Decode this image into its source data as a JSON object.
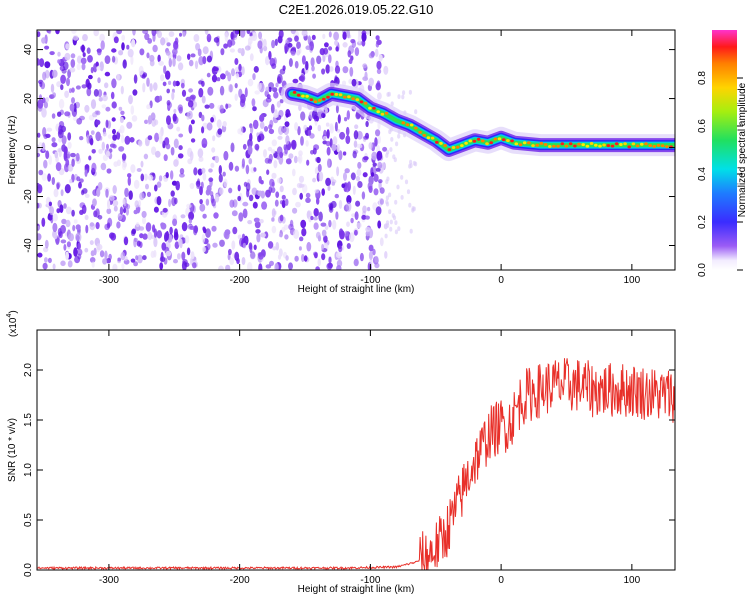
{
  "title": "C2E1.2026.019.05.22.G10",
  "colors": {
    "signal": "#e8302a",
    "speckle": "#6a1ee6",
    "frame": "#000000"
  },
  "chart_data": [
    {
      "type": "heatmap",
      "xlabel": "Height of straight line (km)",
      "ylabel": "Frequency (Hz)",
      "xlim": [
        -355,
        133
      ],
      "ylim": [
        -50,
        48
      ],
      "xticks": [
        -300,
        -200,
        -100,
        0,
        100
      ],
      "yticks": [
        -40,
        -20,
        0,
        20,
        40
      ],
      "colorbar": {
        "label": "Normalized spectral amplitude",
        "range": [
          0,
          1
        ],
        "ticks": [
          "0.0",
          "0.2",
          "0.4",
          "0.6",
          "0.8"
        ],
        "tick_values": [
          0.0,
          0.2,
          0.4,
          0.6,
          0.8
        ]
      },
      "noise_region_x": [
        -355,
        -88
      ],
      "signal_track": {
        "x": [
          -160,
          -150,
          -140,
          -130,
          -120,
          -110,
          -100,
          -90,
          -80,
          -70,
          -60,
          -50,
          -40,
          -30,
          -20,
          -10,
          0,
          10,
          30,
          50,
          70,
          90,
          110,
          133
        ],
        "y": [
          22,
          21,
          19,
          22,
          21,
          20,
          16,
          14,
          11,
          9,
          6,
          3,
          -1,
          1,
          3,
          2,
          4,
          2,
          1,
          1,
          1,
          1,
          1,
          1
        ]
      }
    },
    {
      "type": "line",
      "xlabel": "Height of straight line (km)",
      "ylabel": "SNR (10 * v/v)",
      "multiplier": "(x10",
      "multiplier_exp": "4",
      "xlim": [
        -355,
        133
      ],
      "ylim": [
        0,
        2.4
      ],
      "xticks": [
        -300,
        -200,
        -100,
        0,
        100
      ],
      "yticks": [
        "0.0",
        "0.5",
        "1.0",
        "1.5",
        "2.0"
      ],
      "ytick_values": [
        0.0,
        0.5,
        1.0,
        1.5,
        2.0
      ],
      "series": [
        {
          "x": [
            -355,
            -300,
            -200,
            -120,
            -80,
            -65,
            -55,
            -45,
            -38,
            -32,
            -25,
            -20,
            -15,
            -10,
            -5,
            0,
            5,
            10,
            15,
            20,
            30,
            40,
            50,
            60,
            70,
            80,
            100,
            120,
            133
          ],
          "y": [
            0.02,
            0.02,
            0.02,
            0.02,
            0.03,
            0.08,
            0.15,
            0.3,
            0.5,
            0.7,
            0.95,
            1.1,
            1.2,
            1.35,
            1.4,
            1.45,
            1.45,
            1.55,
            1.7,
            1.75,
            1.8,
            1.85,
            1.85,
            1.85,
            1.8,
            1.8,
            1.8,
            1.75,
            1.75
          ]
        }
      ]
    }
  ]
}
